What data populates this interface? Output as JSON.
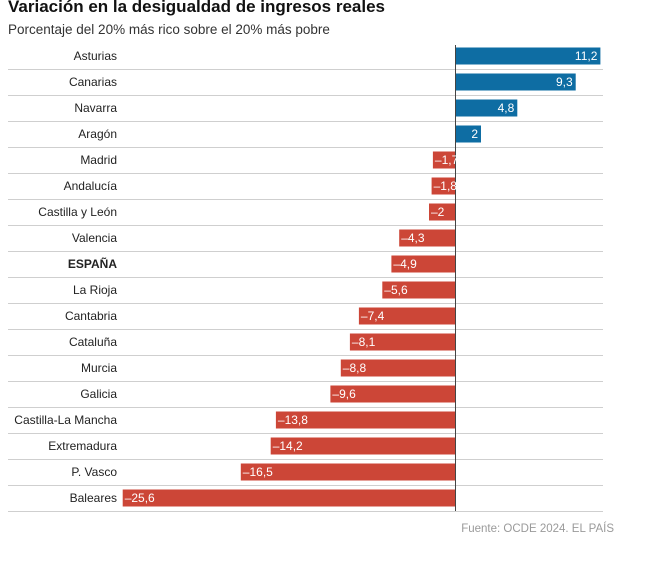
{
  "title": "Variación en la desigualdad de ingresos reales",
  "subtitle": "Porcentaje del 20% más rico sobre el 20% más pobre",
  "source": "Fuente: OCDE 2024. EL PAÍS",
  "colors": {
    "positive": "#0e6da3",
    "negative": "#cc4637",
    "zero_line": "#444444",
    "row_separator": "#cfcfcf",
    "value_text": "#ffffff"
  },
  "chart_data": {
    "type": "bar",
    "orientation": "horizontal",
    "title": "Variación en la desigualdad de ingresos reales",
    "subtitle": "Porcentaje del 20% más rico sobre el 20% más pobre",
    "xlabel": "",
    "ylabel": "",
    "xlim": [
      -25.6,
      11.2
    ],
    "grid": false,
    "legend": "none",
    "highlight": "ESPAÑA",
    "categories": [
      "Asturias",
      "Canarias",
      "Navarra",
      "Aragón",
      "Madrid",
      "Andalucía",
      "Castilla y León",
      "Valencia",
      "ESPAÑA",
      "La Rioja",
      "Cantabria",
      "Cataluña",
      "Murcia",
      "Galicia",
      "Castilla-La Mancha",
      "Extremadura",
      "P. Vasco",
      "Baleares"
    ],
    "values": [
      11.2,
      9.3,
      4.8,
      2,
      -1.7,
      -1.8,
      -2,
      -4.3,
      -4.9,
      -5.6,
      -7.4,
      -8.1,
      -8.8,
      -9.6,
      -13.8,
      -14.2,
      -16.5,
      -25.6
    ],
    "value_labels": [
      "11,2",
      "9,3",
      "4,8",
      "2",
      "–1,7",
      "–1,8",
      "–2",
      "–4,3",
      "–4,9",
      "–5,6",
      "–7,4",
      "–8,1",
      "–8,8",
      "–9,6",
      "–13,8",
      "–14,2",
      "–16,5",
      "–25,6"
    ]
  }
}
